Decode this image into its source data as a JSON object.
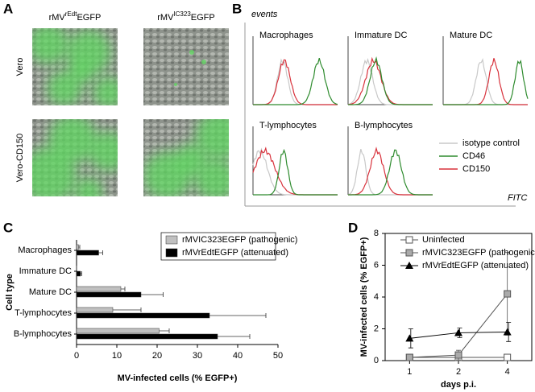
{
  "panel_labels": [
    "A",
    "B",
    "C",
    "D"
  ],
  "panel_a": {
    "columns": [
      {
        "prefix": "rMV",
        "sup": "rEdt",
        "suffix": "EGFP"
      },
      {
        "prefix": "rMV",
        "sup": "IC323",
        "suffix": "EGFP"
      }
    ],
    "rows": [
      "Vero",
      "Vero-CD150"
    ]
  },
  "panel_b": {
    "y_label": "events",
    "x_label": "FITC",
    "subpanels": [
      "Macrophages",
      "Immature DC",
      "Mature DC",
      "T-lymphocytes",
      "B-lymphocytes"
    ],
    "legend": [
      {
        "name": "isotype control",
        "color": "#c8c8c8"
      },
      {
        "name": "CD46",
        "color": "#2e8b2e"
      },
      {
        "name": "CD150",
        "color": "#d8323c"
      }
    ]
  },
  "chart_data": [
    {
      "type": "bar",
      "orientation": "horizontal",
      "x_label": "MV-infected cells (% EGFP+)",
      "y_label": "Cell type",
      "categories": [
        "Macrophages",
        "Immature DC",
        "Mature DC",
        "T-lymphocytes",
        "B-lymphocytes"
      ],
      "series": [
        {
          "name": "rMVIC323EGFP (pathogenic)",
          "color": "#c0c0c0",
          "values": [
            0.5,
            0,
            11,
            9,
            20.5
          ],
          "errors": [
            0.3,
            0,
            1,
            7,
            2.5
          ]
        },
        {
          "name": "rMVrEdtEGFP (attenuated)",
          "color": "#000000",
          "values": [
            5.5,
            1,
            16,
            33,
            35
          ],
          "errors": [
            1,
            0.3,
            5.5,
            14,
            8
          ]
        }
      ],
      "xlim": [
        0,
        50
      ],
      "xticks": [
        0,
        10,
        20,
        30,
        40,
        50
      ]
    },
    {
      "type": "line",
      "x_label": "days p.i.",
      "y_label": "MV-infected cells (% EGFP+)",
      "categories": [
        "1",
        "2",
        "4"
      ],
      "series": [
        {
          "name": "Uninfected",
          "color": "#555555",
          "marker": "open-square",
          "values": [
            0.2,
            0.2,
            0.2
          ],
          "errors": [
            0.2,
            0.1,
            0.2
          ]
        },
        {
          "name": "rMVIC323EGFP (pathogenic)",
          "color": "#555555",
          "marker": "gray-square",
          "values": [
            0.2,
            0.35,
            4.2
          ],
          "errors": [
            0.2,
            0.3,
            2.6
          ]
        },
        {
          "name": "rMVrEdtEGFP (attenuated)",
          "color": "#000000",
          "marker": "triangle",
          "values": [
            1.4,
            1.75,
            1.8
          ],
          "errors": [
            0.6,
            0.3,
            0.6
          ]
        }
      ],
      "ylim": [
        0,
        8
      ],
      "yticks": [
        0,
        2,
        4,
        6,
        8
      ]
    }
  ]
}
